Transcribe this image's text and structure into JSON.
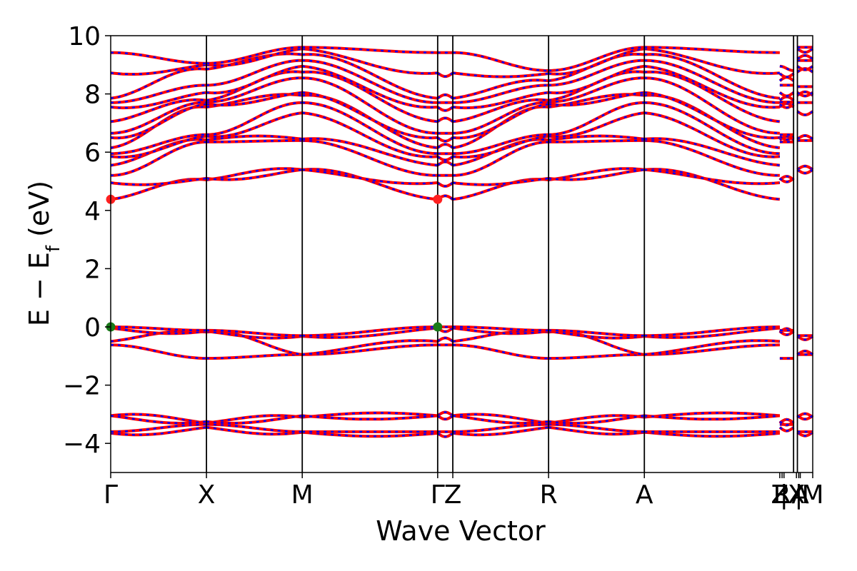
{
  "chart_data": {
    "type": "line",
    "title": "",
    "xlabel": "Wave Vector",
    "ylabel": "E − E_f (eV)",
    "ylabel_main": "E − E",
    "ylabel_sub": "f",
    "ylabel_unit": " (eV)",
    "ylim": [
      -5,
      10
    ],
    "yticks": [
      10,
      8,
      6,
      4,
      2,
      0,
      -2,
      -4
    ],
    "ytick_labels": [
      "10",
      "8",
      "6",
      "4",
      "2",
      "0",
      "−2",
      "−4"
    ],
    "grid": false,
    "legend": "none",
    "kpath": [
      {
        "label": "Γ",
        "k": 0.0
      },
      {
        "label": "X",
        "k": 0.5
      },
      {
        "label": "M",
        "k": 1.0
      },
      {
        "label": "Γ",
        "k": 1.707
      },
      {
        "label": "Z",
        "k": 1.786
      },
      {
        "label": "R",
        "k": 2.286
      },
      {
        "label": "A",
        "k": 2.786
      },
      {
        "label": "Z",
        "k": 3.493
      },
      {
        "label": "R",
        "k": 3.505
      },
      {
        "label": "|",
        "k": 3.515
      },
      {
        "label": "X",
        "k": 3.58
      },
      {
        "label": "|",
        "k": 3.592
      },
      {
        "label": "A",
        "k": 3.6
      },
      {
        "label": "M",
        "k": 3.665
      }
    ],
    "vlines": [
      0.5,
      1.0,
      1.707,
      1.786,
      2.286,
      2.786,
      3.565,
      3.585
    ],
    "xlim": [
      0,
      3.665
    ],
    "tick_label_text": "Γ X M ΓZ R A ZR| |XA M",
    "segments": [
      {
        "from": 0.0,
        "to": 0.5,
        "start": [
          -3.65,
          -3.6,
          -3.05,
          -3.05,
          -0.62,
          -0.5,
          -0.04,
          0.0,
          4.38,
          4.95,
          5.2,
          5.55,
          5.85,
          5.95,
          6.15,
          6.5,
          6.65,
          7.05,
          7.55,
          7.7,
          7.85,
          8.72,
          9.42
        ],
        "end": [
          -3.45,
          -3.35,
          -3.3,
          -3.25,
          -1.08,
          -0.18,
          -0.15,
          -0.12,
          5.05,
          5.1,
          6.35,
          6.42,
          6.55,
          6.6,
          7.55,
          7.65,
          7.72,
          7.78,
          8.05,
          8.3,
          8.85,
          9.0,
          9.05
        ]
      },
      {
        "from": 0.5,
        "to": 1.0,
        "start": [
          -3.45,
          -3.35,
          -3.3,
          -3.25,
          -1.08,
          -0.18,
          -0.15,
          -0.12,
          5.05,
          5.1,
          6.35,
          6.42,
          6.55,
          6.6,
          7.55,
          7.65,
          7.72,
          7.78,
          8.05,
          8.3,
          8.85,
          9.0,
          9.05
        ],
        "end": [
          -3.62,
          -3.6,
          -3.1,
          -3.05,
          -0.95,
          -0.95,
          -0.32,
          -0.3,
          5.4,
          5.4,
          6.4,
          6.45,
          7.35,
          7.7,
          7.95,
          8.05,
          8.55,
          8.75,
          8.95,
          9.15,
          9.35,
          9.55,
          9.6
        ]
      },
      {
        "from": 1.0,
        "to": 1.707,
        "start": [
          -3.62,
          -3.6,
          -3.1,
          -3.05,
          -0.95,
          -0.95,
          -0.32,
          -0.3,
          5.4,
          5.4,
          6.4,
          6.45,
          7.35,
          7.7,
          7.95,
          8.05,
          8.55,
          8.75,
          8.95,
          9.15,
          9.35,
          9.55,
          9.6
        ],
        "end": [
          -3.65,
          -3.6,
          -3.05,
          -3.05,
          -0.62,
          -0.5,
          -0.04,
          0.0,
          4.38,
          4.95,
          5.2,
          5.55,
          5.85,
          5.95,
          6.15,
          6.5,
          6.65,
          7.05,
          7.55,
          7.7,
          7.85,
          8.72,
          9.42
        ]
      },
      {
        "from": 1.707,
        "to": 1.786,
        "start": [
          -3.65,
          -3.6,
          -3.05,
          -3.05,
          -0.62,
          -0.5,
          -0.04,
          0.0,
          4.38,
          4.95,
          5.2,
          5.55,
          5.85,
          5.95,
          6.15,
          6.5,
          6.65,
          7.05,
          7.55,
          7.7,
          7.85,
          8.72,
          9.42
        ],
        "end": [
          -3.65,
          -3.6,
          -3.05,
          -3.05,
          -0.62,
          -0.5,
          -0.04,
          0.0,
          4.38,
          4.95,
          5.2,
          5.55,
          5.85,
          5.95,
          6.15,
          6.5,
          6.65,
          7.05,
          7.55,
          7.7,
          7.85,
          8.72,
          9.42
        ]
      },
      {
        "from": 1.786,
        "to": 2.286,
        "start": [
          -3.65,
          -3.6,
          -3.05,
          -3.05,
          -0.62,
          -0.5,
          -0.04,
          0.0,
          4.38,
          4.95,
          5.2,
          5.55,
          5.85,
          5.95,
          6.15,
          6.5,
          6.65,
          7.05,
          7.55,
          7.7,
          7.85,
          8.72,
          9.42
        ],
        "end": [
          -3.45,
          -3.35,
          -3.3,
          -3.25,
          -1.08,
          -0.18,
          -0.15,
          -0.12,
          5.05,
          5.1,
          6.35,
          6.42,
          6.55,
          6.6,
          7.55,
          7.65,
          7.72,
          7.78,
          8.05,
          8.3,
          8.45,
          8.7,
          8.8
        ]
      },
      {
        "from": 2.286,
        "to": 2.786,
        "start": [
          -3.45,
          -3.35,
          -3.3,
          -3.25,
          -1.08,
          -0.18,
          -0.15,
          -0.12,
          5.05,
          5.1,
          6.35,
          6.42,
          6.55,
          6.6,
          7.55,
          7.65,
          7.72,
          7.78,
          8.05,
          8.3,
          8.45,
          8.7,
          8.8
        ],
        "end": [
          -3.62,
          -3.6,
          -3.1,
          -3.05,
          -0.95,
          -0.95,
          -0.32,
          -0.3,
          5.4,
          5.4,
          6.4,
          6.45,
          7.35,
          7.7,
          7.95,
          8.05,
          8.55,
          8.75,
          8.95,
          9.15,
          9.35,
          9.55,
          9.6
        ]
      },
      {
        "from": 2.786,
        "to": 3.493,
        "start": [
          -3.62,
          -3.6,
          -3.1,
          -3.05,
          -0.95,
          -0.95,
          -0.32,
          -0.3,
          5.4,
          5.4,
          6.4,
          6.45,
          7.35,
          7.7,
          7.95,
          8.05,
          8.55,
          8.75,
          8.95,
          9.15,
          9.35,
          9.55,
          9.6
        ],
        "end": [
          -3.65,
          -3.6,
          -3.05,
          -3.05,
          -0.62,
          -0.5,
          -0.04,
          0.0,
          4.38,
          4.95,
          5.2,
          5.55,
          5.85,
          5.95,
          6.15,
          6.5,
          6.65,
          7.05,
          7.55,
          7.7,
          7.85,
          8.72,
          9.42
        ]
      },
      {
        "from": 3.493,
        "to": 3.565,
        "start": [
          -3.45,
          -3.35,
          -3.3,
          -3.25,
          -1.08,
          -0.18,
          -0.15,
          -0.12,
          5.05,
          5.1,
          6.35,
          6.42,
          6.55,
          6.6,
          7.55,
          7.65,
          7.72,
          7.78,
          8.05,
          8.3,
          8.45,
          8.7,
          8.95
        ],
        "end": [
          -3.45,
          -3.35,
          -3.3,
          -3.25,
          -1.08,
          -0.18,
          -0.15,
          -0.12,
          5.05,
          5.1,
          6.35,
          6.42,
          6.55,
          6.6,
          7.55,
          7.65,
          7.72,
          7.78,
          8.05,
          8.3,
          8.45,
          8.7,
          8.8
        ]
      },
      {
        "from": 3.585,
        "to": 3.665,
        "start": [
          -3.62,
          -3.6,
          -3.1,
          -3.05,
          -0.95,
          -0.95,
          -0.32,
          -0.3,
          5.4,
          5.4,
          6.4,
          6.45,
          7.4,
          7.7,
          7.95,
          8.05,
          8.25,
          8.75,
          8.95,
          9.15,
          9.2,
          9.55,
          9.6
        ],
        "end": [
          -3.62,
          -3.6,
          -3.1,
          -3.05,
          -0.95,
          -0.95,
          -0.32,
          -0.3,
          5.4,
          5.4,
          6.4,
          6.45,
          7.4,
          7.7,
          7.95,
          8.05,
          8.25,
          8.75,
          8.95,
          9.15,
          9.2,
          9.55,
          9.6
        ]
      }
    ],
    "markers": [
      {
        "name": "cbm",
        "k": 0.0,
        "e": 4.38,
        "color": "#ff2020"
      },
      {
        "name": "cbm",
        "k": 1.707,
        "e": 4.38,
        "color": "#ff2020"
      },
      {
        "name": "vbm",
        "k": 0.0,
        "e": 0.0,
        "color": "#1a7a1a"
      },
      {
        "name": "vbm",
        "k": 1.707,
        "e": 0.0,
        "color": "#1a7a1a"
      }
    ],
    "colors": {
      "spin_up": "#0000ff",
      "spin_down": "#ff0000",
      "axis": "#000000"
    }
  }
}
